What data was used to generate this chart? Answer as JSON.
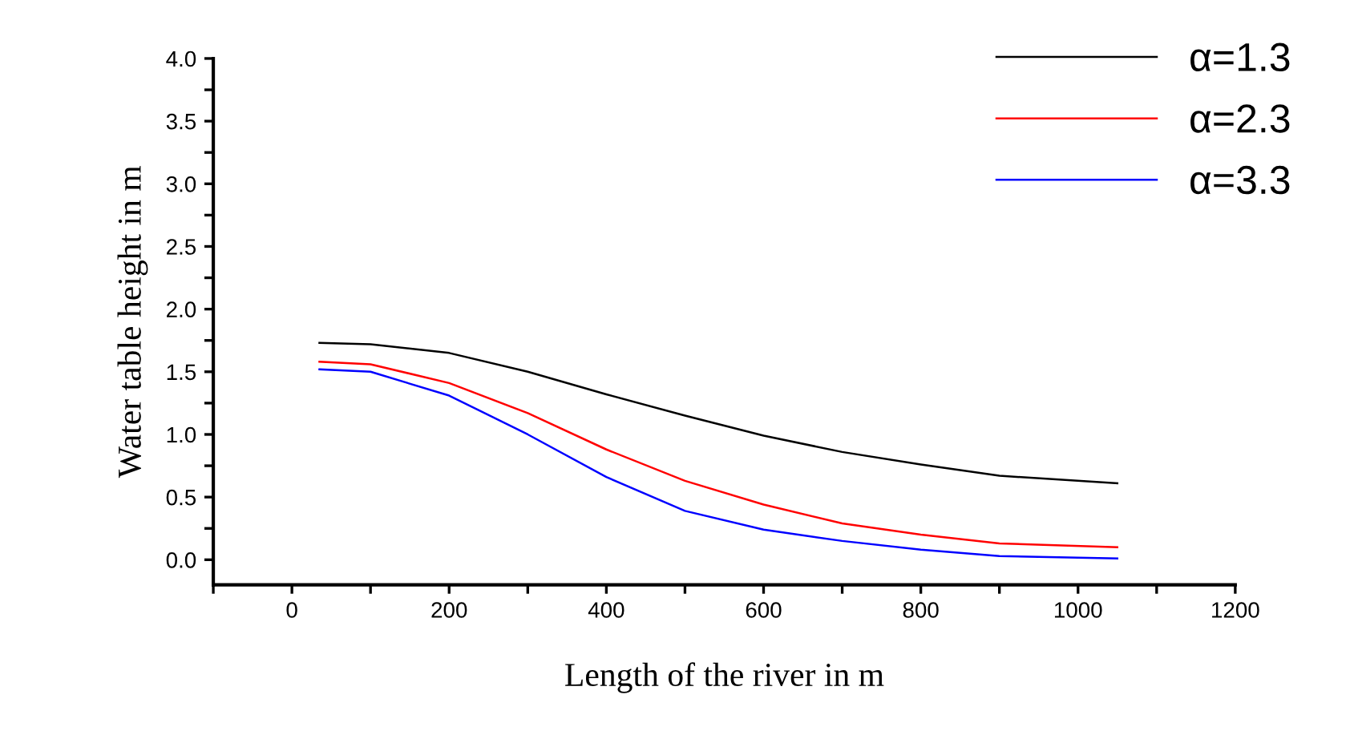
{
  "chart_data": {
    "type": "line",
    "xlabel": "Length of the river in m",
    "ylabel": "Water table height in m",
    "x": [
      35,
      100,
      200,
      300,
      400,
      500,
      600,
      700,
      800,
      900,
      1050
    ],
    "series": [
      {
        "name": "α=1.3",
        "color": "#000000",
        "values": [
          1.73,
          1.72,
          1.65,
          1.5,
          1.32,
          1.15,
          0.99,
          0.86,
          0.76,
          0.67,
          0.61
        ]
      },
      {
        "name": "α=2.3",
        "color": "#ff0000",
        "values": [
          1.58,
          1.56,
          1.41,
          1.17,
          0.88,
          0.63,
          0.44,
          0.29,
          0.2,
          0.13,
          0.1
        ]
      },
      {
        "name": "α=3.3",
        "color": "#0000ff",
        "values": [
          1.52,
          1.5,
          1.31,
          1.0,
          0.66,
          0.39,
          0.24,
          0.15,
          0.08,
          0.03,
          0.01
        ]
      }
    ],
    "xlim": [
      -100,
      1200
    ],
    "ylim": [
      -0.2,
      4.0
    ],
    "xticks": [
      {
        "value": -100,
        "label": null
      },
      0,
      {
        "value": 100,
        "label": null
      },
      200,
      {
        "value": 300,
        "label": null
      },
      400,
      {
        "value": 500,
        "label": null
      },
      600,
      {
        "value": 700,
        "label": null
      },
      800,
      {
        "value": 900,
        "label": null
      },
      1000,
      {
        "value": 1100,
        "label": null
      },
      1200
    ],
    "yticks": [
      "0.0",
      {
        "value": 0.25,
        "label": null
      },
      {
        "value": 0.5,
        "label": "0.5"
      },
      {
        "value": 0.75,
        "label": null
      },
      {
        "value": 1.0,
        "label": "1.0"
      },
      {
        "value": 1.25,
        "label": null
      },
      {
        "value": 1.5,
        "label": "1.5"
      },
      {
        "value": 1.75,
        "label": null
      },
      {
        "value": 2.0,
        "label": "2.0"
      },
      {
        "value": 2.25,
        "label": null
      },
      {
        "value": 2.5,
        "label": "2.5"
      },
      {
        "value": 2.75,
        "label": null
      },
      {
        "value": 3.0,
        "label": "3.0"
      },
      {
        "value": 3.25,
        "label": null
      },
      {
        "value": 3.5,
        "label": "3.5"
      },
      {
        "value": 3.75,
        "label": null
      },
      {
        "value": 4.0,
        "label": "4.0"
      }
    ],
    "legend": "top right",
    "grid": false,
    "marker": "none",
    "line_style": "solid"
  }
}
